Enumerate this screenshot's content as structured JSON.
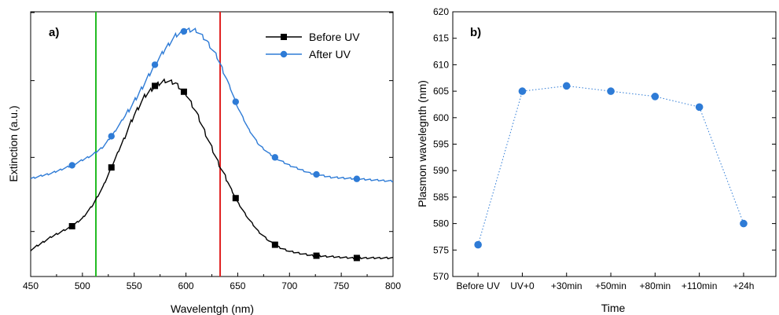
{
  "chart_data": [
    {
      "type": "line",
      "panel_label": "a)",
      "xlabel": "Wavelentgh  (nm)",
      "ylabel": "Extinction  (a.u.)",
      "xlim": [
        450,
        800
      ],
      "ylim": [
        0,
        1
      ],
      "x_ticks": [
        "450",
        "500",
        "550",
        "600",
        "650",
        "700",
        "750",
        "800"
      ],
      "y_tick_labels_shown": false,
      "legend_position": "top-right",
      "vertical_lines": [
        {
          "x": 513,
          "color": "#22bb22"
        },
        {
          "x": 633,
          "color": "#e02020"
        }
      ],
      "series": [
        {
          "name": "Before UV",
          "color": "#000000",
          "marker": "square",
          "x": [
            450,
            470,
            490,
            500,
            510,
            520,
            530,
            540,
            550,
            560,
            570,
            580,
            590,
            600,
            610,
            620,
            630,
            640,
            650,
            660,
            670,
            680,
            690,
            700,
            720,
            740,
            760,
            780,
            800
          ],
          "y": [
            0.1,
            0.15,
            0.19,
            0.22,
            0.27,
            0.34,
            0.43,
            0.52,
            0.61,
            0.68,
            0.72,
            0.74,
            0.73,
            0.69,
            0.62,
            0.53,
            0.44,
            0.36,
            0.28,
            0.22,
            0.17,
            0.135,
            0.11,
            0.095,
            0.08,
            0.075,
            0.07,
            0.07,
            0.07
          ],
          "marker_x": [
            490,
            528,
            570,
            598,
            648,
            686,
            726,
            765
          ]
        },
        {
          "name": "After UV",
          "color": "#2e7bd6",
          "marker": "circle",
          "x": [
            450,
            470,
            490,
            500,
            510,
            520,
            530,
            540,
            550,
            560,
            570,
            580,
            590,
            600,
            610,
            620,
            630,
            640,
            650,
            660,
            670,
            680,
            690,
            700,
            720,
            740,
            760,
            780,
            800
          ],
          "y": [
            0.37,
            0.39,
            0.42,
            0.44,
            0.46,
            0.49,
            0.54,
            0.6,
            0.66,
            0.73,
            0.8,
            0.86,
            0.91,
            0.93,
            0.93,
            0.89,
            0.83,
            0.74,
            0.64,
            0.56,
            0.5,
            0.465,
            0.44,
            0.42,
            0.39,
            0.375,
            0.37,
            0.365,
            0.36
          ],
          "marker_x": [
            490,
            528,
            570,
            598,
            648,
            686,
            726,
            765
          ]
        }
      ]
    },
    {
      "type": "scatter",
      "panel_label": "b)",
      "xlabel": "Time",
      "ylabel": "Plasmon wavelegnth (nm)",
      "categories": [
        "Before UV",
        "UV+0",
        "+30min",
        "+50min",
        "+80min",
        "+110min",
        "+24h"
      ],
      "values": [
        576,
        605,
        606,
        605,
        604,
        602,
        580
      ],
      "ylim": [
        570,
        620
      ],
      "y_ticks": [
        "570",
        "575",
        "580",
        "585",
        "590",
        "595",
        "600",
        "605",
        "610",
        "615",
        "620"
      ],
      "color": "#2e7bd6",
      "line_style": "dotted"
    }
  ]
}
